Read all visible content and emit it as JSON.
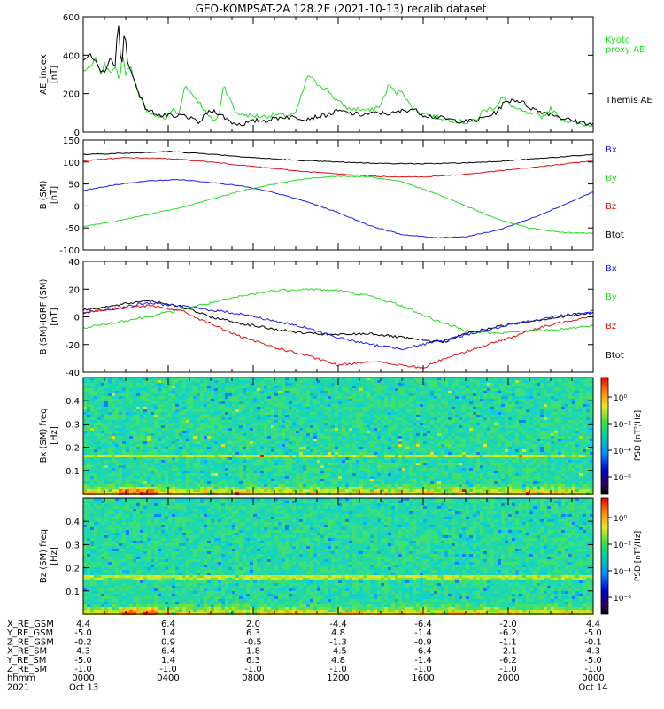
{
  "title": "GEO-KOMPSAT-2A 128.2E (2021-10-13) recalib dataset",
  "colors": {
    "black": "#000000",
    "green": "#22dd22",
    "blue": "#1a1aff",
    "red": "#dd1111"
  },
  "chart_data": [
    {
      "type": "line",
      "ylabel": "AE_index [nT]",
      "ylim": [
        0,
        600
      ],
      "yticks": [
        "0",
        "200",
        "400",
        "600"
      ],
      "legend": [
        {
          "name": "Kyoto proxy AE",
          "lines": [
            "Kyoto",
            "proxy AE"
          ],
          "color": "#22dd22"
        },
        {
          "name": "Themis AE",
          "lines": [
            "Themis AE"
          ],
          "color": "#000000"
        }
      ],
      "series": [
        {
          "name": "Kyoto proxy AE",
          "color": "#22dd22",
          "x": [
            0,
            0.3,
            0.6,
            0.8,
            1.0,
            1.3,
            1.55,
            1.7,
            1.85,
            2.0,
            2.2,
            2.4,
            2.6,
            2.8,
            3.0,
            3.3,
            3.6,
            3.9,
            4.2,
            4.5,
            4.8,
            5.1,
            5.5,
            5.9,
            6.2,
            6.4,
            6.6,
            6.9,
            7.2,
            7.6,
            8.0,
            8.5,
            9.0,
            9.5,
            10.0,
            10.3,
            10.6,
            10.9,
            11.2,
            11.5,
            11.8,
            12.1,
            12.5,
            13.0,
            13.5,
            14.0,
            14.4,
            14.7,
            15.0,
            15.3,
            15.7,
            16.0,
            16.5,
            17.0,
            17.5,
            18.0,
            18.5,
            18.8,
            19.1,
            19.4,
            19.7,
            20.0,
            20.4,
            20.8,
            21.2,
            21.6,
            22.0,
            22.5,
            23.0,
            23.5,
            24.0
          ],
          "y": [
            320,
            330,
            380,
            300,
            350,
            320,
            330,
            260,
            420,
            300,
            350,
            280,
            200,
            150,
            110,
            90,
            80,
            70,
            120,
            90,
            250,
            200,
            150,
            80,
            60,
            90,
            250,
            170,
            100,
            90,
            85,
            80,
            90,
            85,
            95,
            200,
            300,
            260,
            240,
            220,
            180,
            150,
            120,
            120,
            110,
            140,
            250,
            200,
            220,
            150,
            110,
            100,
            80,
            70,
            60,
            50,
            60,
            110,
            120,
            130,
            180,
            150,
            120,
            100,
            90,
            80,
            120,
            70,
            50,
            40,
            40
          ]
        },
        {
          "name": "Themis AE",
          "color": "#000000",
          "x": [
            0,
            0.3,
            0.6,
            0.8,
            1.0,
            1.3,
            1.5,
            1.65,
            1.8,
            1.95,
            2.1,
            2.3,
            2.5,
            2.7,
            2.9,
            3.1,
            3.4,
            3.7,
            4.0,
            4.3,
            4.6,
            4.9,
            5.2,
            5.5,
            5.8,
            6.2,
            6.6,
            7.0,
            7.4,
            7.8,
            8.2,
            8.6,
            9.0,
            9.5,
            10.0,
            10.5,
            11.0,
            11.5,
            12.0,
            12.5,
            13.0,
            13.5,
            14.0,
            14.5,
            15.0,
            15.5,
            16.0,
            16.5,
            17.0,
            17.5,
            18.0,
            18.5,
            19.0,
            19.4,
            19.8,
            20.2,
            20.6,
            21.0,
            21.4,
            21.8,
            22.2,
            22.6,
            23.0,
            23.5,
            24.0
          ],
          "y": [
            380,
            400,
            360,
            310,
            320,
            380,
            350,
            580,
            300,
            560,
            350,
            300,
            240,
            180,
            130,
            110,
            100,
            80,
            90,
            70,
            90,
            80,
            60,
            50,
            100,
            110,
            80,
            50,
            40,
            50,
            60,
            60,
            70,
            80,
            75,
            70,
            80,
            90,
            110,
            100,
            90,
            95,
            100,
            95,
            110,
            120,
            90,
            80,
            70,
            60,
            55,
            60,
            80,
            100,
            150,
            170,
            160,
            130,
            110,
            100,
            90,
            70,
            60,
            50,
            40
          ]
        }
      ]
    },
    {
      "type": "line",
      "ylabel": "B (SM) [nT]",
      "ylim": [
        -100,
        150
      ],
      "yticks": [
        "-100",
        "-50",
        "0",
        "50",
        "100",
        "150"
      ],
      "legend": [
        {
          "name": "Bx",
          "lines": [
            "Bx"
          ],
          "color": "#1a1aff"
        },
        {
          "name": "By",
          "lines": [
            "By"
          ],
          "color": "#22dd22"
        },
        {
          "name": "Bz",
          "lines": [
            "Bz"
          ],
          "color": "#dd1111"
        },
        {
          "name": "Btot",
          "lines": [
            "Btot"
          ],
          "color": "#000000"
        }
      ],
      "series": [
        {
          "name": "Btot",
          "color": "#000000",
          "x": [
            0,
            2,
            4,
            6,
            8,
            10,
            12,
            14,
            16,
            18,
            20,
            22,
            24
          ],
          "y": [
            117,
            120,
            124,
            118,
            110,
            104,
            100,
            97,
            96,
            98,
            103,
            110,
            117
          ]
        },
        {
          "name": "Bx",
          "color": "#1a1aff",
          "x": [
            0,
            1.5,
            3,
            4.5,
            6,
            7.5,
            9,
            10.5,
            12,
            13.5,
            15,
            16.5,
            18,
            19.5,
            21,
            22.5,
            24
          ],
          "y": [
            35,
            48,
            57,
            60,
            54,
            45,
            30,
            10,
            -15,
            -45,
            -65,
            -72,
            -70,
            -55,
            -30,
            0,
            32
          ]
        },
        {
          "name": "By",
          "color": "#22dd22",
          "x": [
            0,
            1.5,
            3,
            4.5,
            6,
            7.5,
            9,
            10.5,
            12,
            13.5,
            15,
            16.5,
            18,
            19.5,
            21,
            22.5,
            24
          ],
          "y": [
            -47,
            -35,
            -20,
            -5,
            15,
            35,
            50,
            62,
            68,
            66,
            55,
            30,
            0,
            -30,
            -50,
            -60,
            -62
          ]
        },
        {
          "name": "Bz",
          "color": "#dd1111",
          "x": [
            0,
            2,
            4,
            6,
            8,
            10,
            12,
            14,
            16,
            18,
            20,
            22,
            24
          ],
          "y": [
            103,
            110,
            108,
            100,
            90,
            80,
            73,
            67,
            66,
            72,
            82,
            92,
            103
          ]
        }
      ]
    },
    {
      "type": "line",
      "ylabel": "B (SM)-IGRF (SM) [nT]",
      "ylim": [
        -40,
        40
      ],
      "yticks": [
        "-40",
        "-20",
        "0",
        "20",
        "40"
      ],
      "legend": [
        {
          "name": "Bx",
          "lines": [
            "Bx"
          ],
          "color": "#1a1aff"
        },
        {
          "name": "By",
          "lines": [
            "By"
          ],
          "color": "#22dd22"
        },
        {
          "name": "Bz",
          "lines": [
            "Bz"
          ],
          "color": "#dd1111"
        },
        {
          "name": "Btot",
          "lines": [
            "Btot"
          ],
          "color": "#000000"
        }
      ],
      "series": [
        {
          "name": "By",
          "color": "#22dd22",
          "x": [
            0,
            1.5,
            3,
            4.5,
            6,
            7.5,
            9,
            10.5,
            12,
            13.5,
            15,
            16.5,
            18,
            19.5,
            21,
            22.5,
            24
          ],
          "y": [
            -8,
            -4,
            0,
            5,
            10,
            15,
            19,
            20,
            19,
            15,
            8,
            -2,
            -10,
            -12,
            -10,
            -9,
            -6
          ]
        },
        {
          "name": "Btot",
          "color": "#000000",
          "x": [
            0,
            1.5,
            3,
            4.5,
            6,
            7.5,
            9,
            10.5,
            12,
            13.5,
            15,
            16,
            17,
            18,
            19.5,
            21,
            22.5,
            24
          ],
          "y": [
            5,
            8,
            12,
            8,
            0,
            -5,
            -9,
            -12,
            -13,
            -12,
            -15,
            -17,
            -18,
            -12,
            -7,
            -3,
            0,
            3
          ]
        },
        {
          "name": "Bx",
          "color": "#1a1aff",
          "x": [
            0,
            1.5,
            3,
            4.5,
            6,
            7.5,
            9,
            10.5,
            12,
            13.5,
            15,
            16,
            17,
            18,
            19.5,
            21,
            22.5,
            24
          ],
          "y": [
            3,
            6,
            10,
            8,
            5,
            2,
            -3,
            -8,
            -15,
            -20,
            -23,
            -20,
            -17,
            -13,
            -8,
            -3,
            1,
            4
          ]
        },
        {
          "name": "Bz",
          "color": "#dd1111",
          "x": [
            0,
            1.5,
            3,
            4.5,
            6,
            7.5,
            9,
            10.5,
            12,
            13.5,
            15,
            16,
            17,
            18,
            19.5,
            21,
            22.5,
            24
          ],
          "y": [
            3,
            6,
            8,
            5,
            -5,
            -15,
            -22,
            -28,
            -35,
            -32,
            -35,
            -37,
            -30,
            -25,
            -18,
            -10,
            -4,
            1
          ]
        }
      ]
    },
    {
      "type": "heatmap",
      "ylabel": "Bx (SM) freq [Hz]",
      "ylim": [
        0,
        0.5
      ],
      "yticks": [
        "0.1",
        "0.2",
        "0.3",
        "0.4"
      ],
      "colorbar": {
        "label": "PSD [nT²/Hz]",
        "ticks": [
          "10⁰",
          "10⁻²",
          "10⁻⁴",
          "10⁻⁶"
        ]
      }
    },
    {
      "type": "heatmap",
      "ylabel": "Bz (SM) freq [Hz]",
      "ylim": [
        0,
        0.5
      ],
      "yticks": [
        "0.1",
        "0.2",
        "0.3",
        "0.4"
      ],
      "colorbar": {
        "label": "PSD [nT²/Hz]",
        "ticks": [
          "10⁰",
          "10⁻²",
          "10⁻⁴",
          "10⁻⁶"
        ]
      }
    }
  ],
  "xaxis": {
    "rows": [
      {
        "label": "X_RE_GSM",
        "values": [
          "4.4",
          "6.4",
          "2.0",
          "-4.4",
          "-6.4",
          "-2.0",
          "4.4"
        ]
      },
      {
        "label": "Y_RE_GSM",
        "values": [
          "-5.0",
          "1.4",
          "6.3",
          "4.8",
          "-1.4",
          "-6.2",
          "-5.0"
        ]
      },
      {
        "label": "Z_RE_GSM",
        "values": [
          "-0.2",
          "0.9",
          "-0.5",
          "-1.3",
          "-0.9",
          "-1.1",
          "-0.1"
        ]
      },
      {
        "label": "X_RE_SM",
        "values": [
          "4.3",
          "6.4",
          "1.8",
          "-4.5",
          "-6.4",
          "-2.1",
          "4.3"
        ]
      },
      {
        "label": "Y_RE_SM",
        "values": [
          "-5.0",
          "1.4",
          "6.3",
          "4.8",
          "-1.4",
          "-6.2",
          "-5.0"
        ]
      },
      {
        "label": "Z_RE_SM",
        "values": [
          "-1.0",
          "-1.0",
          "-1.0",
          "-1.0",
          "-1.0",
          "-1.0",
          "-1.0"
        ]
      },
      {
        "label": "hhmm",
        "values": [
          "0000",
          "0400",
          "0800",
          "1200",
          "1600",
          "2000",
          "0000"
        ]
      },
      {
        "label": "2021",
        "values": [
          "Oct 13",
          "",
          "",
          "",
          "",
          "",
          "Oct 14"
        ]
      }
    ]
  }
}
